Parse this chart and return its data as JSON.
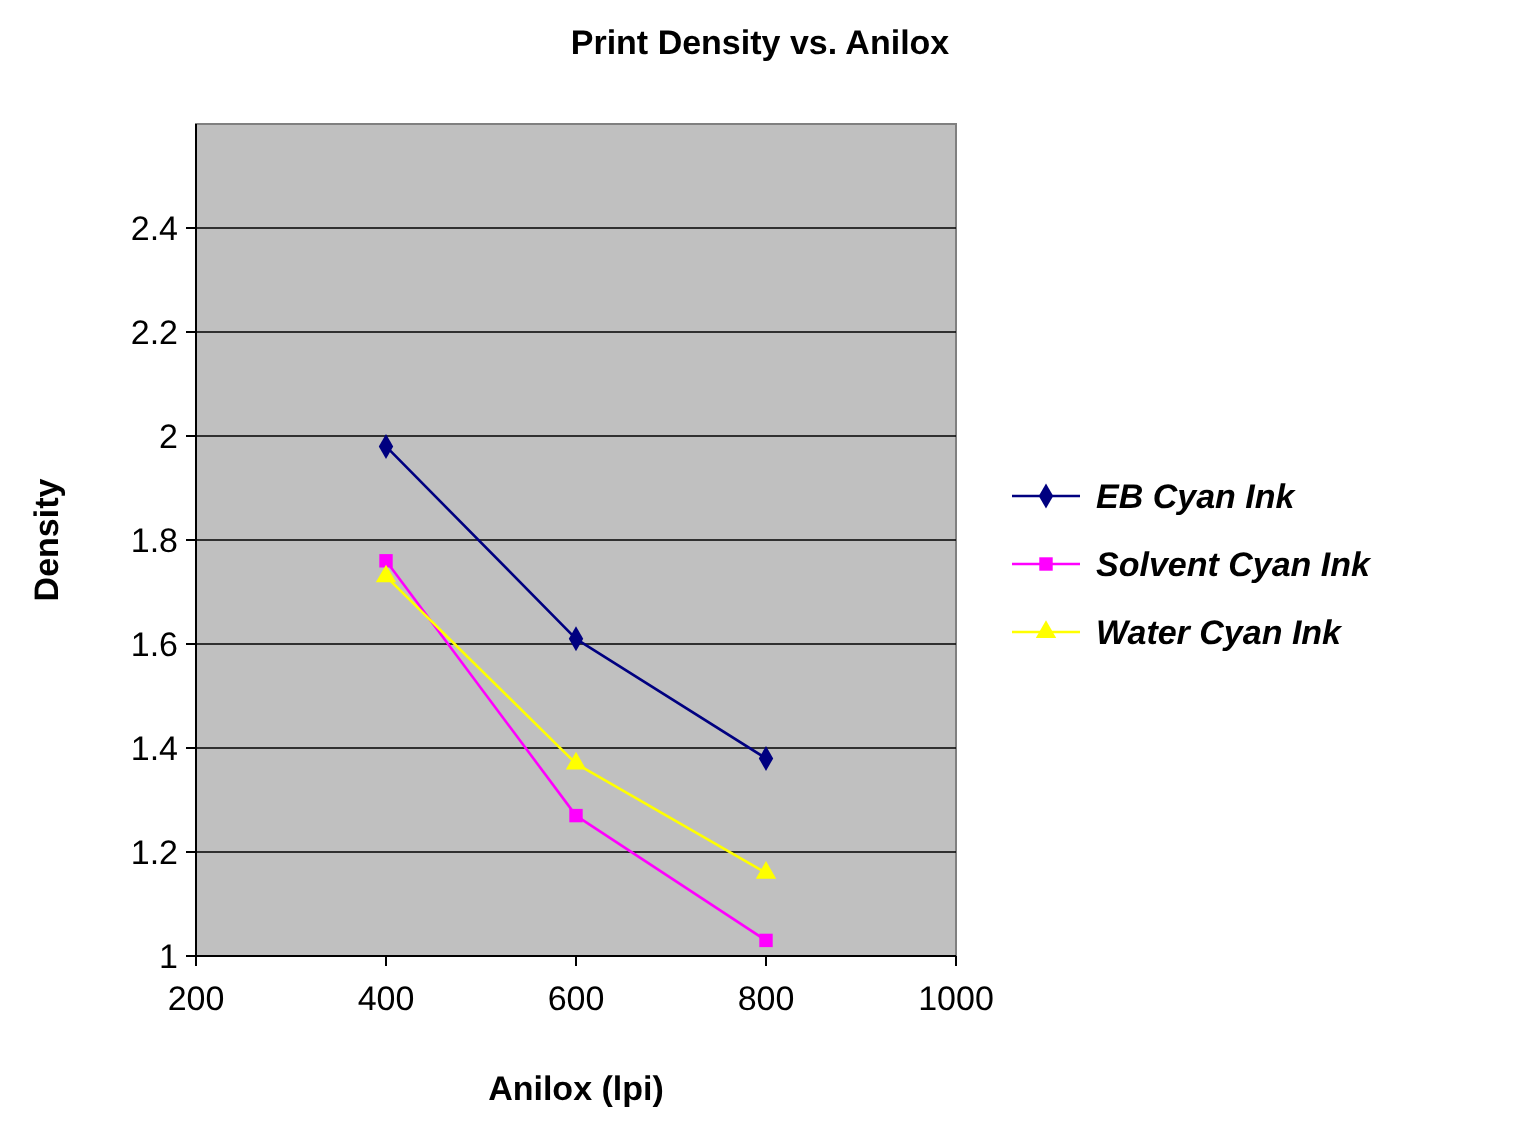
{
  "chart_data": {
    "type": "line",
    "title": "Print Density vs. Anilox",
    "xlabel": "Anilox (lpi)",
    "ylabel": "Density",
    "x": [
      400,
      600,
      800
    ],
    "series": [
      {
        "name": "EB Cyan Ink",
        "color": "#000080",
        "marker": "diamond",
        "values": [
          1.98,
          1.61,
          1.38
        ]
      },
      {
        "name": "Solvent Cyan Ink",
        "color": "#ff00ff",
        "marker": "square",
        "values": [
          1.76,
          1.27,
          1.03
        ]
      },
      {
        "name": "Water Cyan Ink",
        "color": "#ffff00",
        "marker": "triangle",
        "values": [
          1.73,
          1.37,
          1.16
        ]
      }
    ],
    "xlim": [
      200,
      1000
    ],
    "xticks": [
      200,
      400,
      600,
      800,
      1000
    ],
    "ylim": [
      1,
      2.6
    ],
    "yticks": [
      1,
      1.2,
      1.4,
      1.6,
      1.8,
      2,
      2.2,
      2.4
    ],
    "grid": "y",
    "legend": "right",
    "line_style": "solid"
  }
}
